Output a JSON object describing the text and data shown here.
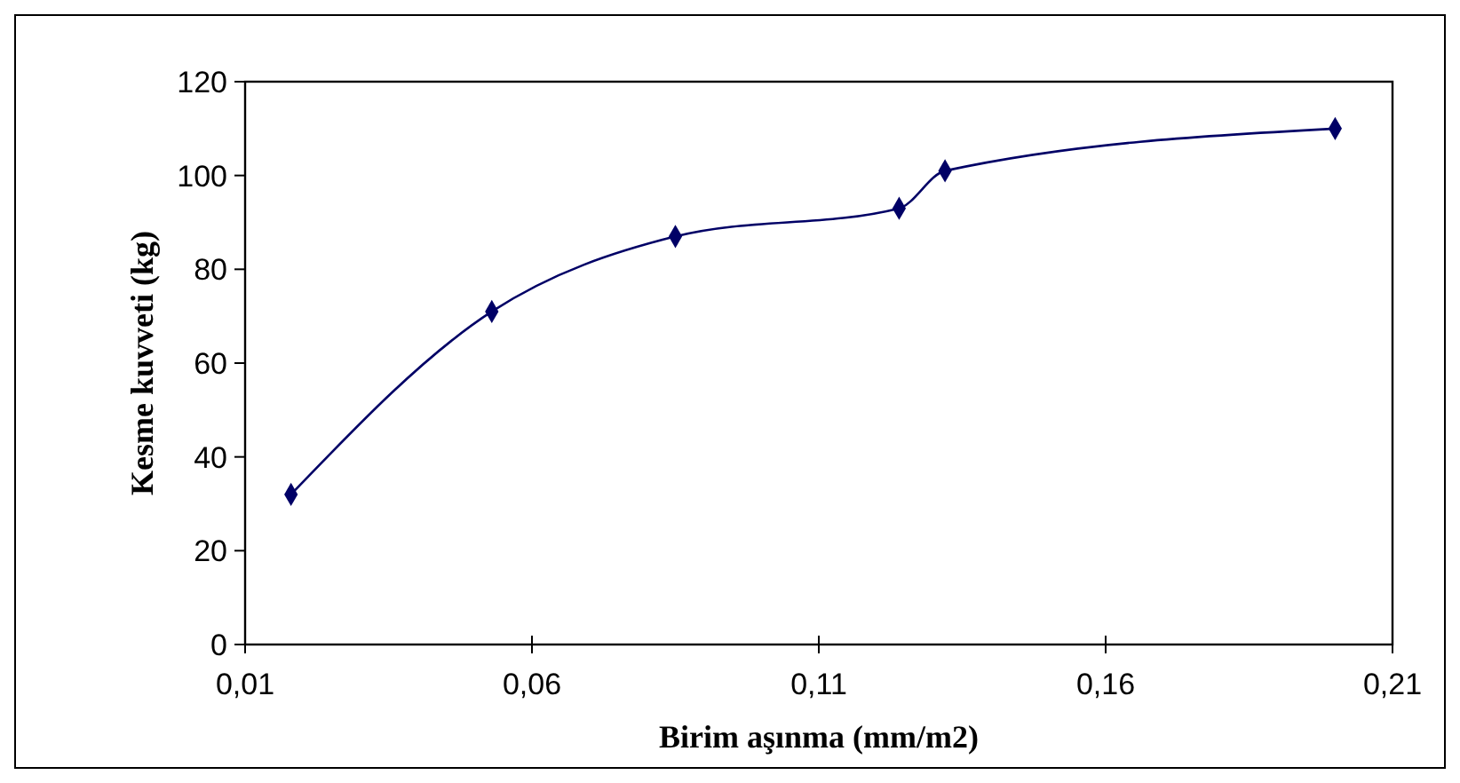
{
  "chart_data": {
    "type": "line",
    "xlabel": "Birim aşınma (mm/m2)",
    "ylabel": "Kesme kuvveti (kg)",
    "x": [
      0.018,
      0.053,
      0.085,
      0.124,
      0.132,
      0.2
    ],
    "series": [
      {
        "color": "#000066",
        "values": [
          32,
          71,
          87,
          93,
          101,
          110
        ]
      }
    ],
    "xlim": [
      0.01,
      0.21
    ],
    "xticks": [
      {
        "value": 0.01,
        "label": "0,01"
      },
      {
        "value": 0.06,
        "label": "0,06"
      },
      {
        "value": 0.11,
        "label": "0,11"
      },
      {
        "value": 0.16,
        "label": "0,16"
      },
      {
        "value": 0.21,
        "label": "0,21"
      }
    ],
    "ylim": [
      0,
      120
    ],
    "yticks": [
      0,
      20,
      40,
      60,
      80,
      100,
      120
    ],
    "marker": "diamond",
    "line_style": "solid",
    "grid": false
  }
}
